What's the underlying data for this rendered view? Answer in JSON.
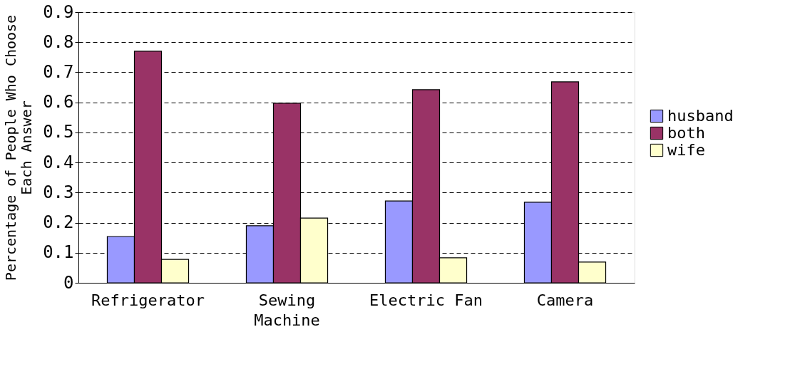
{
  "chart_data": {
    "type": "bar",
    "ylabel": "Percentage of People Who Choose Each Answer",
    "categories": [
      "Refrigerator",
      "Sewing Machine",
      "Electric Fan",
      "Camera"
    ],
    "series": [
      {
        "name": "husband",
        "color": "#9999ff",
        "values": [
          0.154,
          0.19,
          0.272,
          0.268
        ]
      },
      {
        "name": "both",
        "color": "#993366",
        "values": [
          0.77,
          0.597,
          0.642,
          0.668
        ]
      },
      {
        "name": "wife",
        "color": "#ffffcc",
        "values": [
          0.078,
          0.215,
          0.083,
          0.069
        ]
      }
    ],
    "ylim": [
      0,
      0.9
    ],
    "yticks": [
      0,
      0.1,
      0.2,
      0.3,
      0.4,
      0.5,
      0.6,
      0.7,
      0.8,
      0.9
    ],
    "grid": "y",
    "legend": "right"
  }
}
